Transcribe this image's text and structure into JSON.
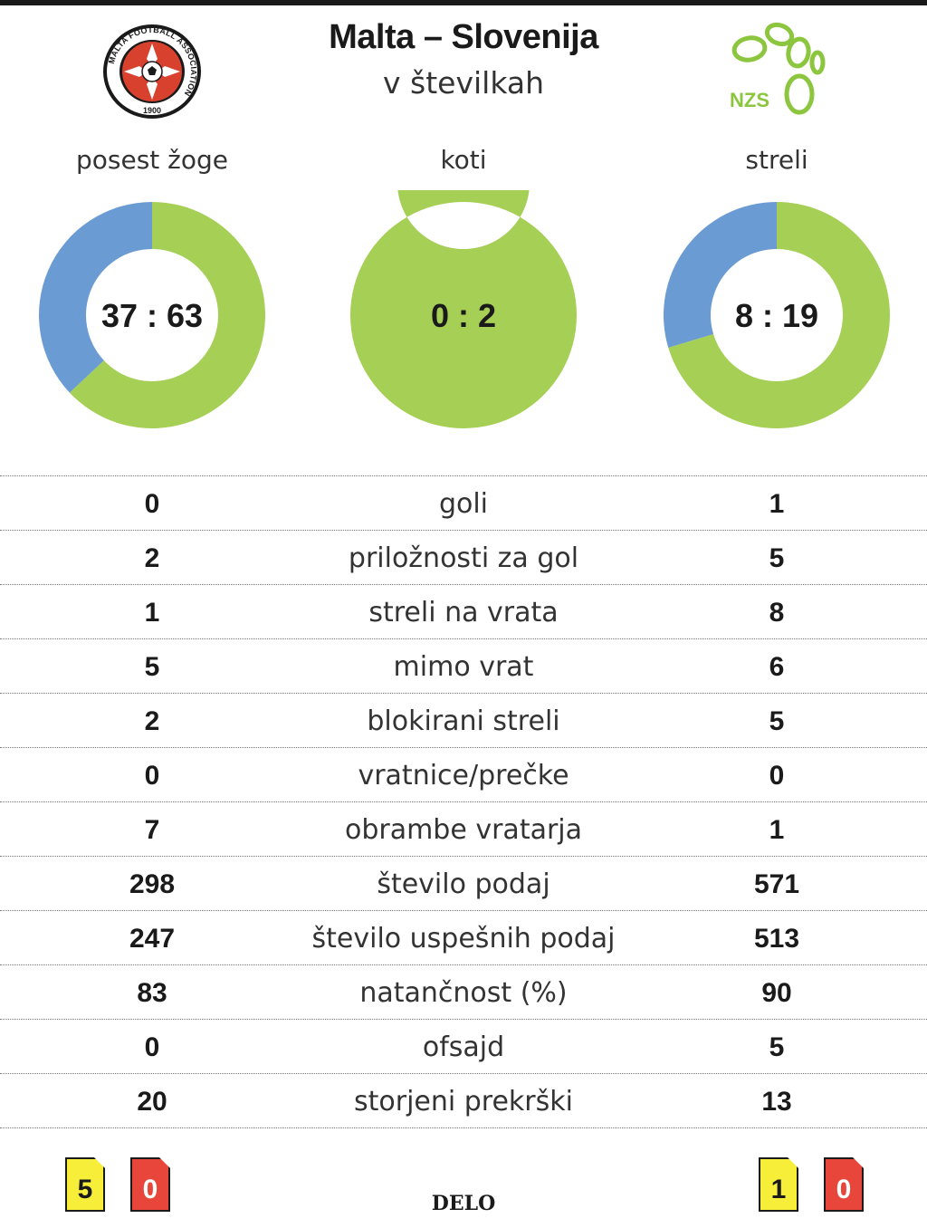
{
  "header": {
    "title": "Malta – Slovenija",
    "subtitle": "v številkah"
  },
  "logos": {
    "home": {
      "name": "MALTA FOOTBALL ASSOCIATION",
      "year": "1900"
    },
    "away": {
      "name": "NZS"
    }
  },
  "chart_data": [
    {
      "type": "pie",
      "title": "posest žoge",
      "center_label": "37 : 63",
      "values": [
        37,
        63
      ],
      "colors": [
        "#6a9bd3",
        "#a6cf56"
      ]
    },
    {
      "type": "pie",
      "title": "koti",
      "center_label": "0 : 2",
      "values": [
        0,
        2
      ],
      "colors": [
        "#6a9bd3",
        "#a6cf56"
      ]
    },
    {
      "type": "pie",
      "title": "streli",
      "center_label": "8 : 19",
      "values": [
        8,
        19
      ],
      "colors": [
        "#6a9bd3",
        "#a6cf56"
      ]
    }
  ],
  "stats": [
    {
      "home": "0",
      "label": "goli",
      "away": "1"
    },
    {
      "home": "2",
      "label": "priložnosti za gol",
      "away": "5"
    },
    {
      "home": "1",
      "label": "streli na vrata",
      "away": "8"
    },
    {
      "home": "5",
      "label": "mimo vrat",
      "away": "6"
    },
    {
      "home": "2",
      "label": "blokirani streli",
      "away": "5"
    },
    {
      "home": "0",
      "label": "vratnice/prečke",
      "away": "0"
    },
    {
      "home": "7",
      "label": "obrambe vratarja",
      "away": "1"
    },
    {
      "home": "298",
      "label": "število podaj",
      "away": "571"
    },
    {
      "home": "247",
      "label": "število uspešnih podaj",
      "away": "513"
    },
    {
      "home": "83",
      "label": "natančnost (%)",
      "away": "90"
    },
    {
      "home": "0",
      "label": "ofsajd",
      "away": "5"
    },
    {
      "home": "20",
      "label": "storjeni prekrški",
      "away": "13"
    }
  ],
  "cards": {
    "home": {
      "yellow": "5",
      "red": "0"
    },
    "away": {
      "yellow": "1",
      "red": "0"
    }
  },
  "brand": "DELO"
}
